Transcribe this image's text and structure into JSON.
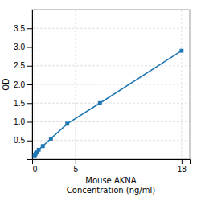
{
  "chart_data": {
    "type": "line",
    "x": [
      0,
      0.0625,
      0.125,
      0.25,
      0.5,
      1.0,
      2.0,
      4.0,
      8.0,
      18.0
    ],
    "values": [
      0.1,
      0.12,
      0.15,
      0.18,
      0.25,
      0.35,
      0.55,
      0.95,
      1.5,
      2.9
    ],
    "xlabel": [
      "Mouse AKNA",
      "Concentration (ng/ml)"
    ],
    "ylabel": "OD",
    "xlim": [
      -0.3,
      19
    ],
    "ylim": [
      0,
      4.0
    ],
    "xticks": [
      0,
      5,
      18
    ],
    "yticks": [
      0.5,
      {
        "value": 1,
        "label": "1.0"
      },
      1.5,
      {
        "value": 2,
        "label": "2.0"
      },
      2.5,
      {
        "value": 3,
        "label": "3.0"
      },
      3.5
    ],
    "grid": true,
    "marker": "square"
  }
}
